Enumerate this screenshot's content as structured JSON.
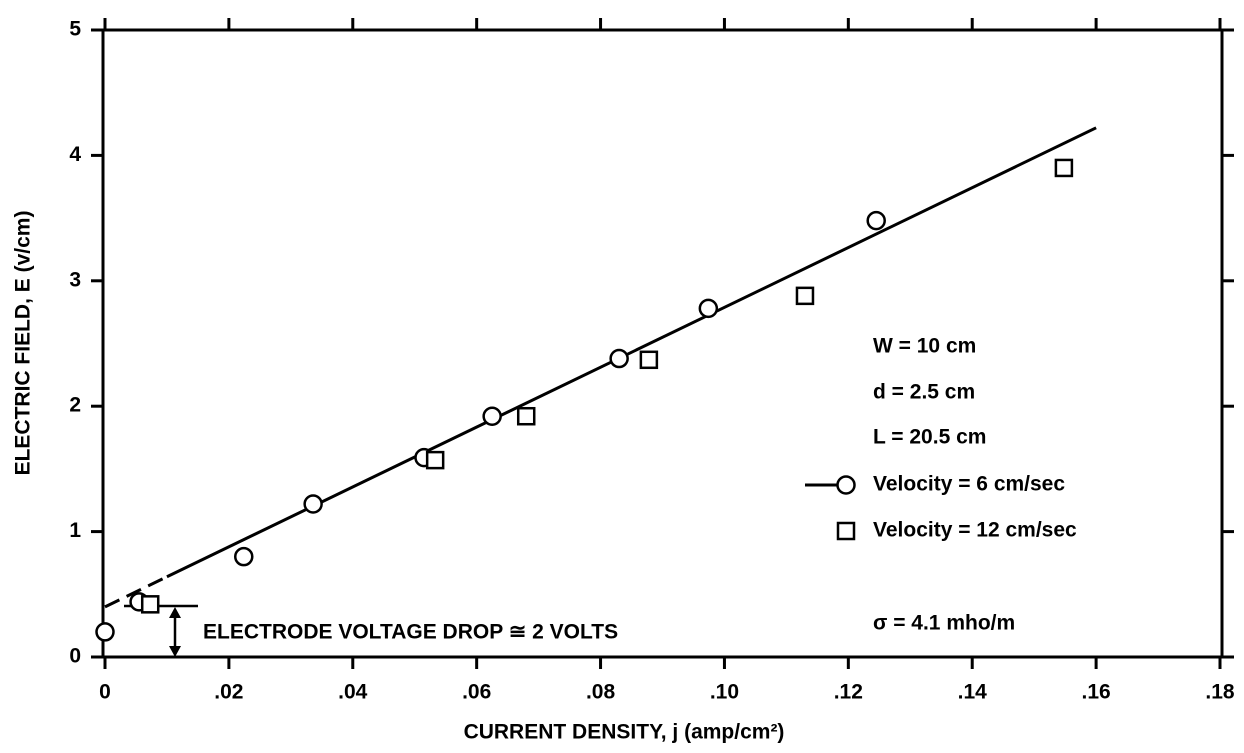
{
  "chart_data": {
    "type": "scatter",
    "xlabel": "CURRENT DENSITY, j (amp/cm²)",
    "ylabel": "ELECTRIC FIELD, E (v/cm)",
    "xlim": [
      0,
      0.18
    ],
    "ylim": [
      0,
      5
    ],
    "xticks": [
      0,
      {
        "value": 0.02,
        "label": ".02"
      },
      {
        "value": 0.04,
        "label": ".04"
      },
      {
        "value": 0.06,
        "label": ".06"
      },
      {
        "value": 0.08,
        "label": ".08"
      },
      {
        "value": 0.1,
        "label": ".10"
      },
      {
        "value": 0.12,
        "label": ".12"
      },
      {
        "value": 0.14,
        "label": ".14"
      },
      {
        "value": 0.16,
        "label": ".16"
      },
      {
        "value": 0.18,
        "label": ".18"
      }
    ],
    "yticks": [
      0,
      1,
      2,
      3,
      4,
      5
    ],
    "series": [
      {
        "name": "Velocity = 6 cm/sec",
        "marker": "circle",
        "color": "#000000",
        "x": [
          0,
          0.0055,
          0.0224,
          0.0336,
          0.0515,
          0.0625,
          0.083,
          0.0974,
          0.1245
        ],
        "values": [
          0.2,
          0.44,
          0.8,
          1.22,
          1.59,
          1.92,
          2.38,
          2.78,
          3.48
        ]
      },
      {
        "name": "Velocity = 12 cm/sec",
        "marker": "square",
        "color": "#000000",
        "x": [
          0.0073,
          0.0533,
          0.068,
          0.0878,
          0.113,
          0.1548
        ],
        "values": [
          0.42,
          1.57,
          1.92,
          2.37,
          2.88,
          3.9
        ]
      }
    ],
    "fit_dashed": {
      "x": [
        0,
        0.01
      ],
      "values": [
        0.4,
        0.64
      ]
    },
    "fit": {
      "x": [
        0.01,
        0.16
      ],
      "values": [
        0.64,
        4.22
      ]
    },
    "notes": [
      "W = 10 cm",
      "d = 2.5 cm",
      "L = 20.5 cm",
      "σ = 4.1 mho/m"
    ],
    "electrode_note": "ELECTRODE VOLTAGE DROP ≅ 2 VOLTS"
  }
}
